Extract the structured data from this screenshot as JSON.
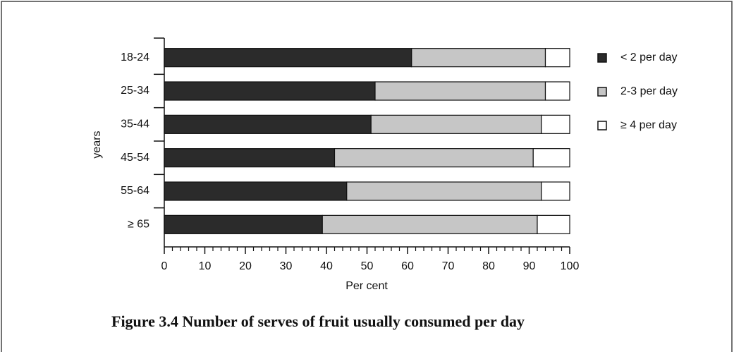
{
  "chart_data": {
    "type": "stacked_barh",
    "title": "Figure 3.4 Number of serves of fruit usually consumed per day",
    "categories": [
      "18-24",
      "25-34",
      "35-44",
      "45-54",
      "55-64",
      "≥ 65"
    ],
    "series": [
      {
        "name": "< 2 per day",
        "color": "#2b2b2b",
        "values": [
          61,
          52,
          51,
          42,
          45,
          39
        ]
      },
      {
        "name": "2-3 per day",
        "color": "#c6c6c6",
        "values": [
          33,
          42,
          42,
          49,
          48,
          53
        ]
      },
      {
        "name": "≥ 4 per day",
        "color": "#ffffff",
        "values": [
          6,
          6,
          7,
          9,
          7,
          8
        ]
      }
    ],
    "x_label": "Per cent",
    "y_label": "years",
    "xlim": [
      0,
      100
    ],
    "xticks": [
      0,
      10,
      20,
      30,
      40,
      50,
      60,
      70,
      80,
      90,
      100
    ],
    "legend": "right"
  }
}
